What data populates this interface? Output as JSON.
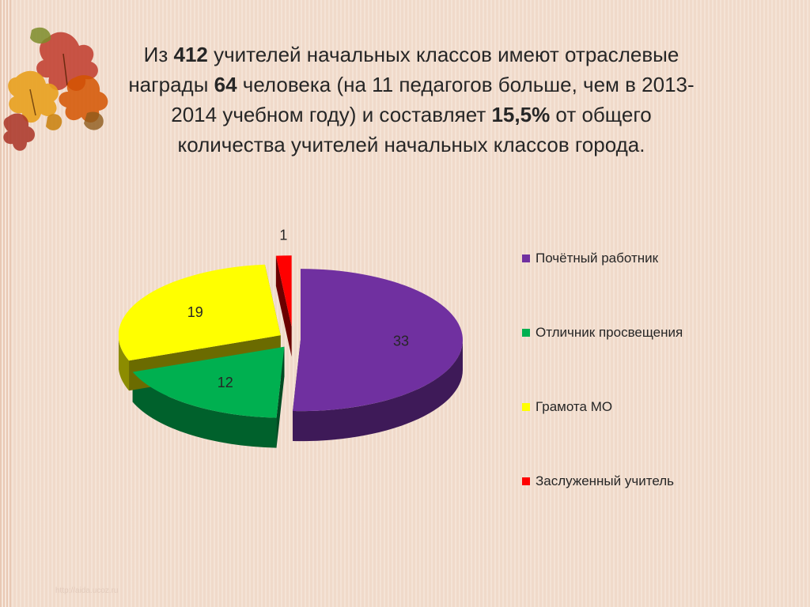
{
  "title": {
    "p1": "Из ",
    "n1": "412",
    "p2": " учителей начальных классов имеют отраслевые награды ",
    "n2": "64",
    "p3": " человека (на 11 педагогов больше, чем в 2013-2014 учебном году) и  составляет ",
    "n3": "15,5%",
    "p4": " от общего количества учителей начальных классов города."
  },
  "chart_data": {
    "type": "pie",
    "title": "",
    "slices": [
      {
        "label": "Почётный работник",
        "value": 33,
        "color": "#7030a0"
      },
      {
        "label": "Отличник просвещения",
        "value": 12,
        "color": "#00b050"
      },
      {
        "label": "Грамота МО",
        "value": 19,
        "color": "#ffff00"
      },
      {
        "label": "Заслуженный учитель",
        "value": 1,
        "color": "#ff0000"
      }
    ],
    "legend_position": "right",
    "data_labels": true
  },
  "watermark": "http://aida.ucoz.ru"
}
